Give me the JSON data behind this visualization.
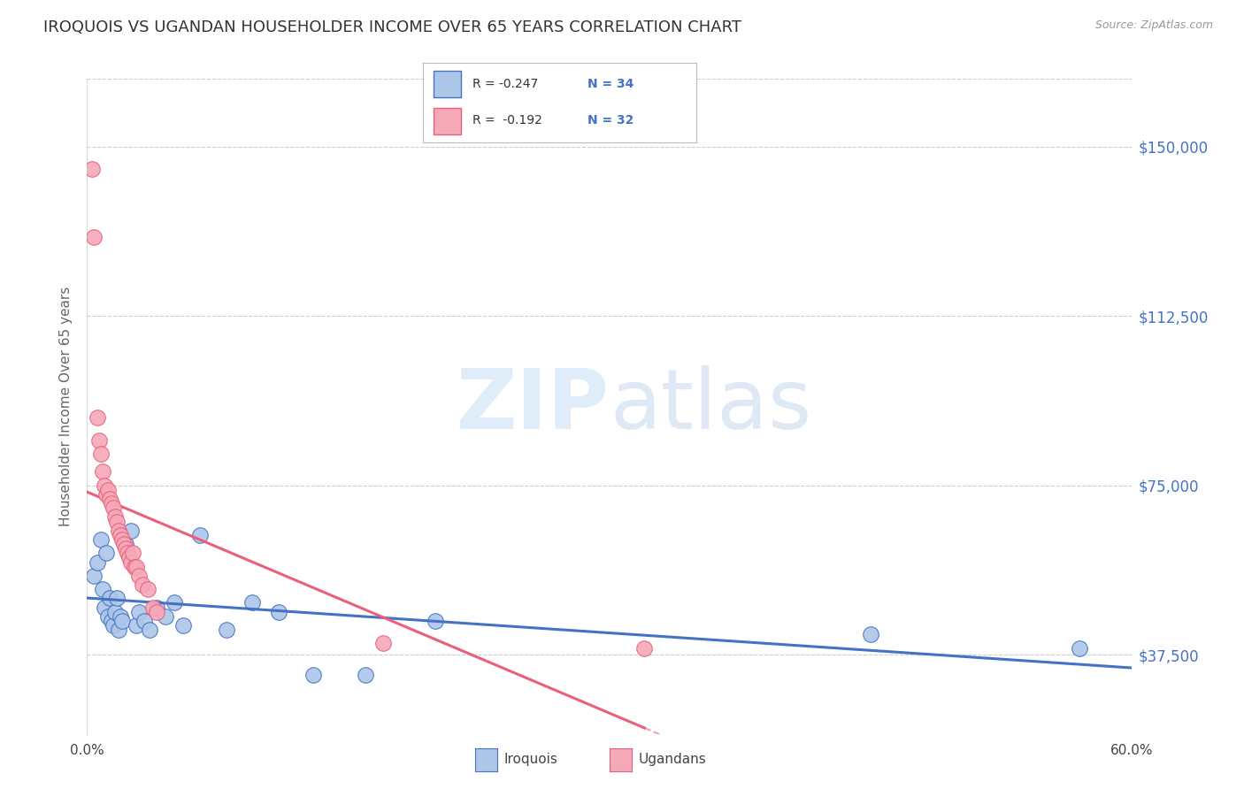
{
  "title": "IROQUOIS VS UGANDAN HOUSEHOLDER INCOME OVER 65 YEARS CORRELATION CHART",
  "source": "Source: ZipAtlas.com",
  "ylabel": "Householder Income Over 65 years",
  "xlim": [
    0.0,
    0.6
  ],
  "ylim": [
    20000,
    165000
  ],
  "yticks": [
    37500,
    75000,
    112500,
    150000
  ],
  "ytick_labels": [
    "$37,500",
    "$75,000",
    "$112,500",
    "$150,000"
  ],
  "grid_color": "#cccccc",
  "background_color": "#ffffff",
  "iroquois_color": "#adc6e8",
  "ugandan_color": "#f5a8b8",
  "iroquois_line_color": "#4472c4",
  "ugandan_line_color": "#e8607a",
  "legend_r_iroquois": "R = -0.247",
  "legend_n_iroquois": "N = 34",
  "legend_r_ugandan": "R =  -0.192",
  "legend_n_ugandan": "N = 32",
  "iroquois_x": [
    0.004,
    0.006,
    0.008,
    0.009,
    0.01,
    0.011,
    0.012,
    0.013,
    0.014,
    0.015,
    0.016,
    0.017,
    0.018,
    0.019,
    0.02,
    0.022,
    0.025,
    0.028,
    0.03,
    0.033,
    0.036,
    0.04,
    0.045,
    0.05,
    0.055,
    0.065,
    0.08,
    0.095,
    0.11,
    0.13,
    0.16,
    0.2,
    0.45,
    0.57
  ],
  "iroquois_y": [
    55000,
    58000,
    63000,
    52000,
    48000,
    60000,
    46000,
    50000,
    45000,
    44000,
    47000,
    50000,
    43000,
    46000,
    45000,
    62000,
    65000,
    44000,
    47000,
    45000,
    43000,
    48000,
    46000,
    49000,
    44000,
    64000,
    43000,
    49000,
    47000,
    33000,
    33000,
    45000,
    42000,
    39000
  ],
  "ugandan_x": [
    0.003,
    0.004,
    0.006,
    0.007,
    0.008,
    0.009,
    0.01,
    0.011,
    0.012,
    0.013,
    0.014,
    0.015,
    0.016,
    0.017,
    0.018,
    0.019,
    0.02,
    0.021,
    0.022,
    0.023,
    0.024,
    0.025,
    0.026,
    0.027,
    0.028,
    0.03,
    0.032,
    0.035,
    0.038,
    0.04,
    0.17,
    0.32
  ],
  "ugandan_y": [
    145000,
    130000,
    90000,
    85000,
    82000,
    78000,
    75000,
    73000,
    74000,
    72000,
    71000,
    70000,
    68000,
    67000,
    65000,
    64000,
    63000,
    62000,
    61000,
    60000,
    59000,
    58000,
    60000,
    57000,
    57000,
    55000,
    53000,
    52000,
    48000,
    47000,
    40000,
    39000
  ]
}
